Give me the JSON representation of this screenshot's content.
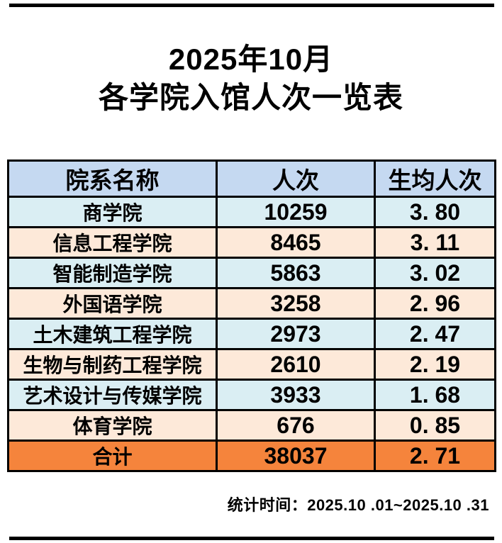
{
  "page": {
    "title_line1": "2025年10月",
    "title_line2": "各学院入馆人次一览表",
    "footer": "统计时间：2025.10 .01~2025.10 .31"
  },
  "table": {
    "columns": [
      "院系名称",
      "人次",
      "生均人次"
    ],
    "rows": [
      {
        "name": "商学院",
        "visits": "10259",
        "per_student": "3. 80"
      },
      {
        "name": "信息工程学院",
        "visits": "8465",
        "per_student": "3. 11"
      },
      {
        "name": "智能制造学院",
        "visits": "5863",
        "per_student": "3. 02"
      },
      {
        "name": "外国语学院",
        "visits": "3258",
        "per_student": "2. 96"
      },
      {
        "name": "土木建筑工程学院",
        "visits": "2973",
        "per_student": "2. 47"
      },
      {
        "name": "生物与制药工程学院",
        "visits": "2610",
        "per_student": "2. 19"
      },
      {
        "name": "艺术设计与传媒学院",
        "visits": "3933",
        "per_student": "1. 68"
      },
      {
        "name": "体育学院",
        "visits": "676",
        "per_student": "0. 85"
      }
    ],
    "total": {
      "name": "合计",
      "visits": "38037",
      "per_student": "2. 71"
    }
  },
  "colors": {
    "header_bg": "#c5d9f1",
    "row_blue": "#daeef3",
    "row_peach": "#fde9d9",
    "total_bg": "#f5843c",
    "border": "#000000"
  }
}
